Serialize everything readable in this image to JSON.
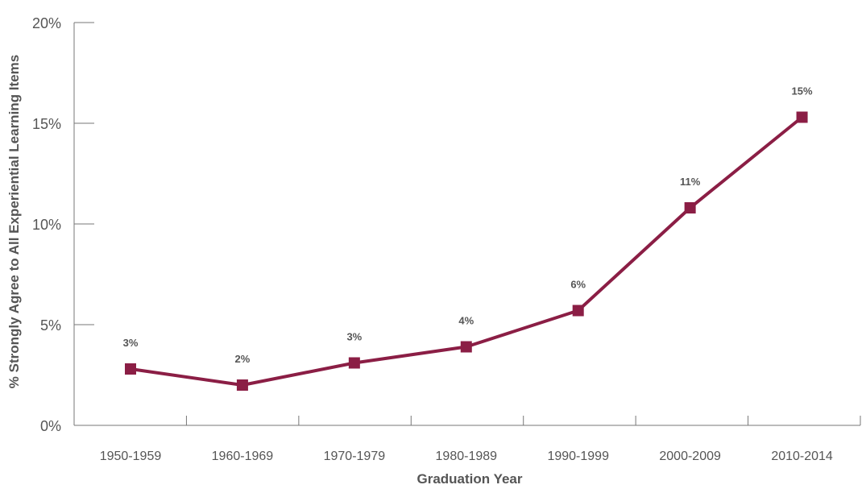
{
  "chart_data": {
    "type": "line",
    "categories": [
      "1950-1959",
      "1960-1969",
      "1970-1979",
      "1980-1989",
      "1990-1999",
      "2000-2009",
      "2010-2014"
    ],
    "series": [
      {
        "values": [
          2.8,
          2.0,
          3.1,
          3.9,
          5.7,
          10.8,
          15.3
        ],
        "labels": [
          "3%",
          "2%",
          "3%",
          "4%",
          "6%",
          "11%",
          "15%"
        ],
        "color": "#8b1e45"
      }
    ],
    "title": "",
    "xlabel": "Graduation Year",
    "ylabel": "% Strongly Agree to All Experiential Learning Items",
    "ylim": [
      0,
      20
    ],
    "yticks": [
      0,
      5,
      10,
      15,
      20
    ],
    "ytick_labels": [
      "0%",
      "5%",
      "10%",
      "15%",
      "20%"
    ],
    "grid": false,
    "legend": "none"
  }
}
